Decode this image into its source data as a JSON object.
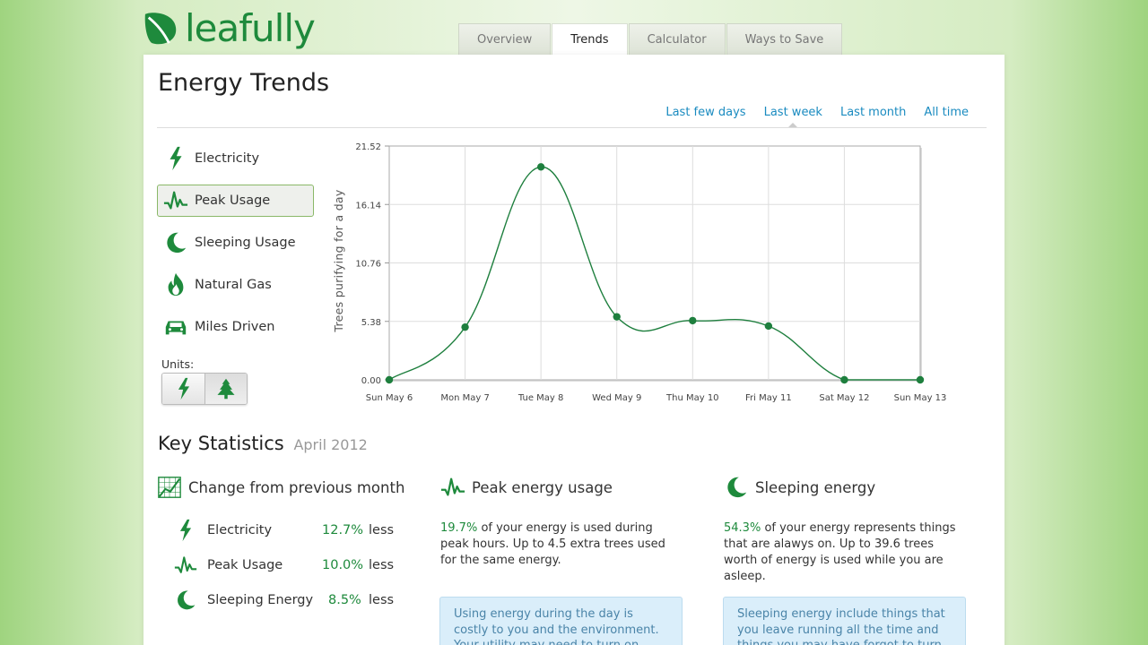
{
  "brand": {
    "name": "leafully"
  },
  "tabs": [
    {
      "label": "Overview",
      "active": false
    },
    {
      "label": "Trends",
      "active": true
    },
    {
      "label": "Calculator",
      "active": false
    },
    {
      "label": "Ways to Save",
      "active": false
    }
  ],
  "page": {
    "title": "Energy Trends"
  },
  "ranges": [
    {
      "label": "Last few days",
      "active": false
    },
    {
      "label": "Last week",
      "active": true
    },
    {
      "label": "Last month",
      "active": false
    },
    {
      "label": "All time",
      "active": false
    }
  ],
  "metrics": [
    {
      "label": "Electricity",
      "icon": "lightning-icon",
      "active": false
    },
    {
      "label": "Peak Usage",
      "icon": "peak-usage-icon",
      "active": true
    },
    {
      "label": "Sleeping Usage",
      "icon": "moon-icon",
      "active": false
    },
    {
      "label": "Natural Gas",
      "icon": "flame-icon",
      "active": false
    },
    {
      "label": "Miles Driven",
      "icon": "car-icon",
      "active": false
    }
  ],
  "units": {
    "label": "Units:",
    "options": [
      "lightning-icon",
      "tree-icon"
    ],
    "selected": "tree-icon"
  },
  "chart_data": {
    "type": "line",
    "ylabel": "Trees purifying for a day",
    "categories": [
      "Sun May 6",
      "Mon May 7",
      "Tue May 8",
      "Wed May 9",
      "Thu May 10",
      "Fri May 11",
      "Sat May 12",
      "Sun May 13"
    ],
    "values": [
      0.0,
      4.85,
      19.6,
      5.8,
      5.45,
      4.95,
      0.0,
      0.0
    ],
    "yticks": [
      "0.00",
      "5.38",
      "10.76",
      "16.14",
      "21.52"
    ],
    "ylim": [
      0,
      21.52
    ],
    "grid": true,
    "color": "#1e7f3e"
  },
  "key_stats": {
    "title": "Key Statistics",
    "period": "April 2012",
    "change": {
      "heading": "Change from previous month",
      "rows": [
        {
          "label": "Electricity",
          "icon": "lightning-icon",
          "value": "12.7%",
          "direction": "less"
        },
        {
          "label": "Peak Usage",
          "icon": "peak-usage-icon",
          "value": "10.0%",
          "direction": "less"
        },
        {
          "label": "Sleeping Energy",
          "icon": "moon-icon",
          "value": "8.5%",
          "direction": "less"
        }
      ]
    },
    "peak": {
      "heading": "Peak energy usage",
      "highlight": "19.7%",
      "text": " of your energy is used during peak hours. Up to 4.5 extra trees used for the same energy.",
      "tip": "Using energy during the day is costly to you and the environment. Your utility may need to turn on less-"
    },
    "sleeping": {
      "heading": "Sleeping energy",
      "highlight": "54.3%",
      "text": " of your energy represents things that are alawys on. Up to 39.6 trees worth of energy is used while you are asleep.",
      "tip": "Sleeping energy include things that you leave running all the time and things you may have forgot to turn"
    }
  }
}
